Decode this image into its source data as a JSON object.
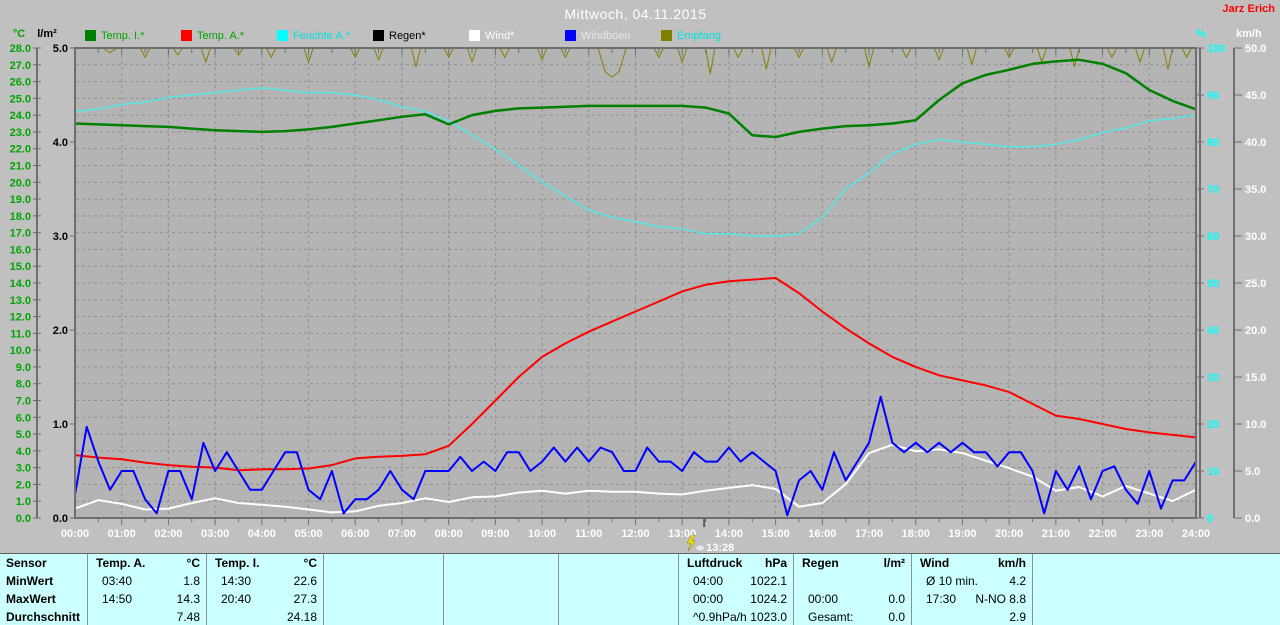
{
  "window": {
    "title": "Mittwoch, 04.11.2015",
    "watermark": "Jarz Erich"
  },
  "colors": {
    "background": "#c0c0c0",
    "plot_background": "#b4b4b4",
    "grid": "#8f8f8f",
    "border": "#6e6e6e",
    "panel_background": "#ccffff",
    "title_text": "#ffffff",
    "watermark_text": "#ff0000",
    "time_label_text": "#ffffff",
    "marker_tick": "#5a5a5a",
    "marker_bolt": "#ffee00",
    "marker_text": "#ffffff"
  },
  "cursor": {
    "time_label": "13:28",
    "hour": 13.47
  },
  "chart_data": {
    "type": "line",
    "title": "Mittwoch, 04.11.2015",
    "grid": {
      "style": "dashed",
      "h_step_temp_c": 1,
      "v_step_hours": 1
    },
    "x_axis": {
      "range_hours": [
        0,
        24
      ],
      "tick_labels": [
        "00:00",
        "01:00",
        "02:00",
        "03:00",
        "04:00",
        "05:00",
        "06:00",
        "07:00",
        "08:00",
        "09:00",
        "10:00",
        "11:00",
        "12:00",
        "13:00",
        "14:00",
        "15:00",
        "16:00",
        "17:00",
        "18:00",
        "19:00",
        "20:00",
        "21:00",
        "22:00",
        "23:00",
        "24:00"
      ]
    },
    "axes": {
      "temp_c": {
        "unit": "°C",
        "side": "left-outer",
        "range": [
          0,
          28
        ],
        "step": 1,
        "color": "#00a400",
        "tick_labels": [
          "28.0",
          "27.0",
          "26.0",
          "25.0",
          "24.0",
          "23.0",
          "22.0",
          "21.0",
          "20.0",
          "19.0",
          "18.0",
          "17.0",
          "16.0",
          "15.0",
          "14.0",
          "13.0",
          "12.0",
          "11.0",
          "10.0",
          "9.0",
          "8.0",
          "7.0",
          "6.0",
          "5.0",
          "4.0",
          "3.0",
          "2.0",
          "1.0",
          "0.0"
        ]
      },
      "rain_lm2": {
        "unit": "l/m²",
        "side": "left-inner",
        "range": [
          0,
          5
        ],
        "step": 1,
        "color": "#000000",
        "tick_labels": [
          "5.0",
          "4.0",
          "3.0",
          "2.0",
          "1.0",
          "0.0"
        ]
      },
      "hum_pct": {
        "unit": "%",
        "side": "right-inner",
        "range": [
          0,
          100
        ],
        "step": 10,
        "color": "#00ffff",
        "tick_labels": [
          "100",
          "90",
          "80",
          "70",
          "60",
          "50",
          "40",
          "30",
          "20",
          "10",
          "0"
        ]
      },
      "wind_kmh": {
        "unit": "km/h",
        "side": "right-outer",
        "range": [
          0,
          50
        ],
        "step": 5,
        "color": "#ffffff",
        "tick_labels": [
          "50.0",
          "45.0",
          "40.0",
          "35.0",
          "30.0",
          "25.0",
          "20.0",
          "15.0",
          "10.0",
          "5.0",
          "0.0"
        ]
      }
    },
    "series": [
      {
        "name": "Temp. I.*",
        "slug": "temp-i",
        "axis": "temp_c",
        "color": "#008000",
        "label_color": "#00a400",
        "width": 2.5,
        "z": 4,
        "x_start": 0,
        "x_step": 0.5,
        "values": [
          23.5,
          23.45,
          23.4,
          23.35,
          23.3,
          23.2,
          23.1,
          23.05,
          23.0,
          23.05,
          23.15,
          23.3,
          23.5,
          23.7,
          23.9,
          24.05,
          23.45,
          24.0,
          24.25,
          24.4,
          24.45,
          24.5,
          24.55,
          24.55,
          24.55,
          24.55,
          24.55,
          24.45,
          24.1,
          22.8,
          22.7,
          23.0,
          23.2,
          23.35,
          23.4,
          23.5,
          23.7,
          24.9,
          25.9,
          26.4,
          26.7,
          27.05,
          27.2,
          27.3,
          27.05,
          26.5,
          25.5,
          24.85,
          24.35
        ]
      },
      {
        "name": "Temp. A.*",
        "slug": "temp-a",
        "axis": "temp_c",
        "color": "#ff0000",
        "label_color": "#00a400",
        "width": 2,
        "z": 5,
        "x_start": 0,
        "x_step": 0.5,
        "values": [
          3.75,
          3.6,
          3.5,
          3.3,
          3.15,
          3.05,
          3.0,
          2.85,
          2.9,
          2.9,
          2.95,
          3.15,
          3.55,
          3.65,
          3.7,
          3.8,
          4.3,
          5.6,
          7.0,
          8.4,
          9.6,
          10.4,
          11.1,
          11.7,
          12.3,
          12.9,
          13.5,
          13.9,
          14.1,
          14.2,
          14.3,
          13.4,
          12.3,
          11.3,
          10.4,
          9.6,
          9.0,
          8.5,
          8.2,
          7.9,
          7.5,
          6.8,
          6.1,
          5.9,
          5.6,
          5.3,
          5.1,
          4.95,
          4.8
        ]
      },
      {
        "name": "Feuchte A.*",
        "slug": "feuchte-a",
        "axis": "hum_pct",
        "color": "#55e8e8",
        "swatch": "#00ffff",
        "label_color": "#00e0e0",
        "width": 1.5,
        "z": 2,
        "x_start": 0,
        "x_step": 0.5,
        "values": [
          86.5,
          87,
          88,
          88.5,
          89.5,
          90,
          90.5,
          91,
          91.5,
          91,
          90.5,
          90.5,
          90,
          89,
          87.5,
          86.5,
          84.5,
          81.5,
          78.5,
          75,
          71.5,
          68.5,
          65.5,
          64,
          63,
          62,
          61.5,
          60.5,
          60.5,
          60,
          60,
          60.5,
          64,
          70,
          73.5,
          77.5,
          79.5,
          80.5,
          80,
          79.5,
          79,
          79,
          79.5,
          80.5,
          82,
          83,
          84.5,
          85,
          85.8
        ]
      },
      {
        "name": "Regen*",
        "slug": "regen",
        "axis": "rain_lm2",
        "color": "#000000",
        "label_color": "#000000",
        "width": 1.5,
        "z": 3,
        "x": [
          0,
          24
        ],
        "values": [
          0.0,
          0.0
        ]
      },
      {
        "name": "Wind*",
        "slug": "wind",
        "axis": "wind_kmh",
        "color": "#ffffff",
        "label_color": "#ffffff",
        "width": 2,
        "z": 6,
        "x_start": 0,
        "x_step": 0.5,
        "values": [
          1.0,
          1.9,
          1.5,
          0.9,
          1.0,
          1.6,
          2.1,
          1.6,
          1.4,
          1.2,
          0.9,
          0.6,
          0.7,
          1.3,
          1.6,
          2.1,
          1.7,
          2.2,
          2.3,
          2.7,
          2.9,
          2.6,
          2.9,
          2.8,
          2.8,
          2.6,
          2.5,
          2.9,
          3.2,
          3.5,
          3.1,
          1.2,
          1.6,
          3.6,
          6.9,
          7.8,
          7.1,
          7.3,
          6.9,
          6.1,
          5.3,
          4.4,
          2.9,
          3.3,
          2.3,
          3.4,
          2.6,
          1.8,
          3.0
        ]
      },
      {
        "name": "Windböen",
        "slug": "windboeen",
        "axis": "wind_kmh",
        "color": "#0000ff",
        "label_color": "#e8e8e8",
        "width": 2,
        "z": 7,
        "x_start": 0,
        "x_step": 0.25,
        "values": [
          2.5,
          9.7,
          6,
          3,
          5,
          5,
          2,
          0.5,
          5,
          5,
          2,
          8,
          5,
          7,
          5,
          3,
          3,
          5,
          7,
          7,
          3,
          2,
          5,
          0.5,
          2,
          2,
          3,
          5,
          3,
          2,
          5,
          5,
          5,
          6.5,
          5,
          6,
          5,
          7,
          7,
          5,
          6,
          7.5,
          6,
          7.5,
          6,
          7.5,
          7,
          5,
          5,
          7.5,
          6,
          6,
          5,
          7,
          6,
          6,
          7.5,
          6,
          7,
          6,
          5,
          0.3,
          4,
          5,
          3,
          7,
          4,
          6,
          8,
          12.9,
          8,
          7,
          8,
          7,
          8,
          7,
          8,
          7,
          7,
          5.5,
          7,
          7,
          5,
          0.5,
          5,
          3,
          5.5,
          2,
          5,
          5.5,
          3,
          1.5,
          5,
          1,
          4,
          4,
          6
        ]
      },
      {
        "name": "Empfang",
        "slug": "empfang",
        "axis": "hum_pct",
        "color": "#808000",
        "label_color": "#00e0e0",
        "width": 1,
        "z": 1,
        "x": [
          0,
          0.6,
          0.75,
          0.9,
          1.4,
          1.5,
          1.6,
          2.1,
          2.2,
          2.3,
          2.7,
          2.8,
          2.9,
          3.4,
          3.5,
          3.6,
          4.1,
          4.2,
          4.3,
          4.9,
          5.0,
          5.1,
          5.9,
          6.0,
          6.1,
          6.4,
          6.5,
          6.6,
          7.2,
          7.3,
          7.4,
          7.9,
          8.0,
          8.1,
          8.4,
          8.5,
          8.6,
          9.1,
          9.2,
          9.3,
          9.9,
          10.0,
          10.1,
          10.4,
          10.5,
          10.6,
          11.2,
          11.35,
          11.5,
          11.65,
          11.8,
          12.4,
          12.5,
          12.6,
          12.9,
          13.0,
          13.1,
          13.5,
          13.6,
          13.7,
          14.1,
          14.2,
          14.3,
          14.7,
          14.8,
          14.9,
          15.4,
          15.5,
          15.6,
          16.1,
          16.2,
          16.3,
          16.9,
          17.0,
          17.1,
          17.7,
          17.8,
          17.9,
          18.4,
          18.5,
          18.6,
          19.1,
          19.2,
          19.3,
          19.9,
          20.0,
          20.1,
          20.6,
          20.7,
          20.8,
          21.3,
          21.4,
          21.5,
          22.1,
          22.2,
          22.3,
          22.7,
          22.8,
          22.9,
          23.3,
          23.4,
          23.5,
          23.7,
          23.8,
          23.9,
          24.0
        ],
        "values": [
          100,
          100,
          99,
          100,
          100,
          98,
          100,
          100,
          98.5,
          100,
          100,
          97,
          100,
          100,
          98.5,
          100,
          100,
          98,
          100,
          100,
          97,
          100,
          100,
          98,
          100,
          100,
          97.5,
          100,
          100,
          96,
          100,
          100,
          98,
          100,
          100,
          97,
          100,
          100,
          98,
          100,
          100,
          97.5,
          100,
          100,
          98,
          100,
          100,
          95,
          93.8,
          95,
          100,
          100,
          98,
          100,
          100,
          97,
          100,
          100,
          94.5,
          100,
          100,
          98,
          100,
          100,
          95.5,
          100,
          100,
          98,
          100,
          100,
          97,
          100,
          100,
          96,
          100,
          100,
          98,
          100,
          100,
          97.5,
          100,
          100,
          96.5,
          100,
          100,
          98,
          100,
          100,
          97,
          100,
          100,
          96,
          100,
          100,
          98,
          100,
          100,
          97,
          100,
          100,
          95.5,
          100,
          100,
          98,
          100,
          100
        ]
      }
    ]
  },
  "stats_table": {
    "row_labels": [
      "Sensor",
      "MinWert",
      "MaxWert",
      "Durchschnitt"
    ],
    "columns": [
      {
        "title": "Temp. A.",
        "unit": "°C",
        "rows": [
          [
            "03:40",
            "1.8"
          ],
          [
            "14:50",
            "14.3"
          ],
          [
            "",
            "7.48"
          ]
        ]
      },
      {
        "title": "Temp. I.",
        "unit": "°C",
        "rows": [
          [
            "14:30",
            "22.6"
          ],
          [
            "20:40",
            "27.3"
          ],
          [
            "",
            "24.18"
          ]
        ]
      },
      {
        "title": "",
        "unit": "",
        "rows": [
          [
            "",
            ""
          ],
          [
            "",
            ""
          ],
          [
            "",
            ""
          ]
        ]
      },
      {
        "title": "",
        "unit": "",
        "rows": [
          [
            "",
            ""
          ],
          [
            "",
            ""
          ],
          [
            "",
            ""
          ]
        ]
      },
      {
        "title": "",
        "unit": "",
        "rows": [
          [
            "",
            ""
          ],
          [
            "",
            ""
          ],
          [
            "",
            ""
          ]
        ]
      },
      {
        "title": "Luftdruck",
        "unit": "hPa",
        "rows": [
          [
            "04:00",
            "1022.1"
          ],
          [
            "00:00",
            "1024.2"
          ],
          [
            "^0.9hPa/h",
            "1023.0"
          ]
        ]
      },
      {
        "title": "Regen",
        "unit": "l/m²",
        "rows": [
          [
            "",
            ""
          ],
          [
            "00:00",
            "0.0"
          ],
          [
            "Gesamt:",
            "0.0"
          ]
        ]
      },
      {
        "title": "Wind",
        "unit": "km/h",
        "rows": [
          [
            "Ø 10 min.",
            "4.2"
          ],
          [
            "17:30",
            "N-NO 8.8"
          ],
          [
            "",
            "2.9"
          ]
        ]
      },
      {
        "title": "",
        "unit": "",
        "rows": [
          [
            "",
            ""
          ],
          [
            "",
            ""
          ],
          [
            "",
            ""
          ]
        ]
      }
    ]
  }
}
